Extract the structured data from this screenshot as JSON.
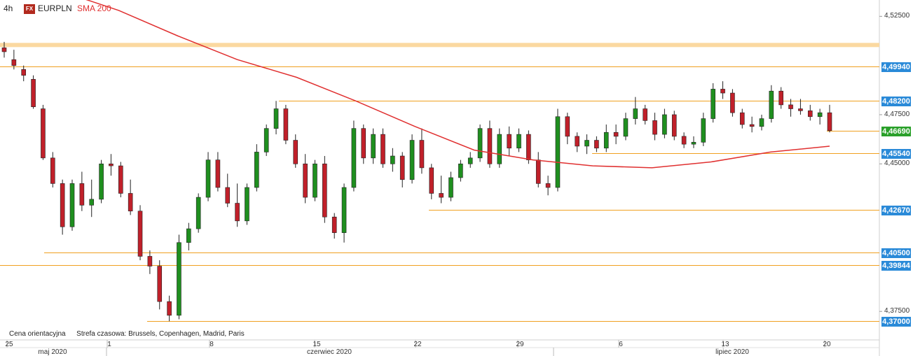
{
  "header": {
    "timeframe": "4h",
    "fx_badge": "FX",
    "symbol": "EURPLN",
    "indicator": "SMA 200"
  },
  "footer": {
    "price_note": "Cena orientacyjna",
    "timezone_note": "Strefa czasowa: Brussels, Copenhagen, Madrid, Paris"
  },
  "colors": {
    "up": "#1f8f1f",
    "down": "#c0202a",
    "sma": "#e03030",
    "level": "#f0a020",
    "zone": "#fbd9a0",
    "tag_blue": "#2a8ad8",
    "tag_green": "#2aa02a"
  },
  "chart_data": {
    "type": "candlestick",
    "title": "",
    "ylim": [
      4.3605,
      4.5333
    ],
    "y_ticks": [
      "4,52500",
      "4,47500",
      "4,45000",
      "4,37500"
    ],
    "x_day_ticks": [
      "25",
      "1",
      "8",
      "15",
      "22",
      "29",
      "6",
      "13",
      "20"
    ],
    "x_month_labels": [
      "maj 2020",
      "czerwiec 2020",
      "lipiec 2020"
    ],
    "resistance_zone": [
      4.5095,
      4.5115
    ],
    "levels": [
      {
        "label": "4,49940",
        "value": 4.4994,
        "style": "blue"
      },
      {
        "label": "4,48200",
        "value": 4.482,
        "style": "blue"
      },
      {
        "label": "4,46690",
        "value": 4.4669,
        "style": "green"
      },
      {
        "label": "4,45540",
        "value": 4.4554,
        "style": "blue"
      },
      {
        "label": "4,42670",
        "value": 4.4267,
        "style": "blue"
      },
      {
        "label": "4,40500",
        "value": 4.405,
        "style": "blue"
      },
      {
        "label": "4,39844",
        "value": 4.3984,
        "style": "blue"
      },
      {
        "label": "4,37000",
        "value": 4.37,
        "style": "blue"
      }
    ],
    "ohlc_sample": [
      [
        4.509,
        4.512,
        4.504,
        4.507
      ],
      [
        4.503,
        4.508,
        4.498,
        4.5
      ],
      [
        4.498,
        4.5,
        4.492,
        4.495
      ],
      [
        4.493,
        4.495,
        4.478,
        4.479
      ],
      [
        4.478,
        4.48,
        4.452,
        4.453
      ],
      [
        4.453,
        4.456,
        4.438,
        4.44
      ],
      [
        4.44,
        4.442,
        4.414,
        4.418
      ],
      [
        4.418,
        4.442,
        4.416,
        4.44
      ],
      [
        4.44,
        4.446,
        4.426,
        4.429
      ],
      [
        4.429,
        4.442,
        4.423,
        4.432
      ],
      [
        4.432,
        4.452,
        4.43,
        4.45
      ],
      [
        4.45,
        4.455,
        4.444,
        4.449
      ],
      [
        4.449,
        4.451,
        4.433,
        4.435
      ],
      [
        4.435,
        4.442,
        4.424,
        4.426
      ],
      [
        4.426,
        4.429,
        4.401,
        4.403
      ],
      [
        4.403,
        4.406,
        4.394,
        4.398
      ],
      [
        4.398,
        4.401,
        4.376,
        4.38
      ],
      [
        4.38,
        4.383,
        4.37,
        4.373
      ],
      [
        4.373,
        4.414,
        4.371,
        4.41
      ],
      [
        4.41,
        4.42,
        4.406,
        4.417
      ],
      [
        4.417,
        4.435,
        4.415,
        4.433
      ],
      [
        4.433,
        4.456,
        4.431,
        4.452
      ],
      [
        4.452,
        4.456,
        4.436,
        4.438
      ],
      [
        4.438,
        4.445,
        4.428,
        4.43
      ],
      [
        4.43,
        4.44,
        4.418,
        4.421
      ],
      [
        4.421,
        4.44,
        4.419,
        4.438
      ],
      [
        4.438,
        4.46,
        4.436,
        4.456
      ],
      [
        4.456,
        4.47,
        4.454,
        4.468
      ],
      [
        4.468,
        4.482,
        4.465,
        4.478
      ],
      [
        4.478,
        4.48,
        4.46,
        4.462
      ],
      [
        4.462,
        4.465,
        4.448,
        4.45
      ],
      [
        4.45,
        4.455,
        4.43,
        4.433
      ],
      [
        4.433,
        4.452,
        4.431,
        4.45
      ],
      [
        4.45,
        4.454,
        4.42,
        4.423
      ],
      [
        4.423,
        4.425,
        4.412,
        4.415
      ],
      [
        4.415,
        4.44,
        4.41,
        4.438
      ],
      [
        4.438,
        4.472,
        4.436,
        4.468
      ],
      [
        4.468,
        4.47,
        4.45,
        4.453
      ],
      [
        4.453,
        4.468,
        4.45,
        4.465
      ],
      [
        4.465,
        4.468,
        4.448,
        4.45
      ],
      [
        4.45,
        4.458,
        4.446,
        4.454
      ],
      [
        4.454,
        4.456,
        4.438,
        4.442
      ],
      [
        4.442,
        4.465,
        4.44,
        4.462
      ],
      [
        4.462,
        4.468,
        4.445,
        4.448
      ],
      [
        4.448,
        4.45,
        4.432,
        4.435
      ],
      [
        4.435,
        4.444,
        4.43,
        4.433
      ],
      [
        4.433,
        4.446,
        4.431,
        4.443
      ],
      [
        4.443,
        4.452,
        4.441,
        4.45
      ],
      [
        4.45,
        4.456,
        4.448,
        4.453
      ],
      [
        4.453,
        4.47,
        4.451,
        4.468
      ],
      [
        4.468,
        4.472,
        4.448,
        4.45
      ],
      [
        4.45,
        4.468,
        4.448,
        4.465
      ],
      [
        4.465,
        4.469,
        4.454,
        4.458
      ],
      [
        4.458,
        4.468,
        4.456,
        4.465
      ],
      [
        4.465,
        4.467,
        4.45,
        4.452
      ],
      [
        4.452,
        4.456,
        4.438,
        4.44
      ],
      [
        4.44,
        4.444,
        4.434,
        4.438
      ],
      [
        4.438,
        4.478,
        4.436,
        4.474
      ],
      [
        4.474,
        4.476,
        4.46,
        4.464
      ],
      [
        4.464,
        4.466,
        4.456,
        4.459
      ],
      [
        4.459,
        4.465,
        4.455,
        4.462
      ],
      [
        4.462,
        4.464,
        4.456,
        4.458
      ],
      [
        4.458,
        4.47,
        4.456,
        4.466
      ],
      [
        4.466,
        4.47,
        4.46,
        4.464
      ],
      [
        4.464,
        4.476,
        4.462,
        4.473
      ],
      [
        4.473,
        4.484,
        4.47,
        4.478
      ],
      [
        4.478,
        4.48,
        4.47,
        4.472
      ],
      [
        4.472,
        4.476,
        4.462,
        4.465
      ],
      [
        4.465,
        4.478,
        4.463,
        4.475
      ],
      [
        4.475,
        4.477,
        4.462,
        4.464
      ],
      [
        4.464,
        4.466,
        4.458,
        4.46
      ],
      [
        4.46,
        4.464,
        4.458,
        4.461
      ],
      [
        4.461,
        4.476,
        4.459,
        4.473
      ],
      [
        4.473,
        4.491,
        4.471,
        4.488
      ],
      [
        4.488,
        4.492,
        4.483,
        4.486
      ],
      [
        4.486,
        4.488,
        4.474,
        4.476
      ],
      [
        4.476,
        4.478,
        4.468,
        4.47
      ],
      [
        4.47,
        4.474,
        4.466,
        4.469
      ],
      [
        4.469,
        4.475,
        4.467,
        4.473
      ],
      [
        4.473,
        4.49,
        4.471,
        4.487
      ],
      [
        4.487,
        4.489,
        4.478,
        4.48
      ],
      [
        4.48,
        4.483,
        4.474,
        4.478
      ],
      [
        4.478,
        4.483,
        4.475,
        4.477
      ],
      [
        4.477,
        4.48,
        4.472,
        4.474
      ],
      [
        4.474,
        4.478,
        4.47,
        4.476
      ],
      [
        4.476,
        4.48,
        4.466,
        4.4669
      ]
    ],
    "sma_200": [
      4.538,
      4.528,
      4.515,
      4.503,
      4.494,
      4.482,
      4.469,
      4.457,
      4.452,
      4.449,
      4.448,
      4.451,
      4.456,
      4.459
    ]
  }
}
